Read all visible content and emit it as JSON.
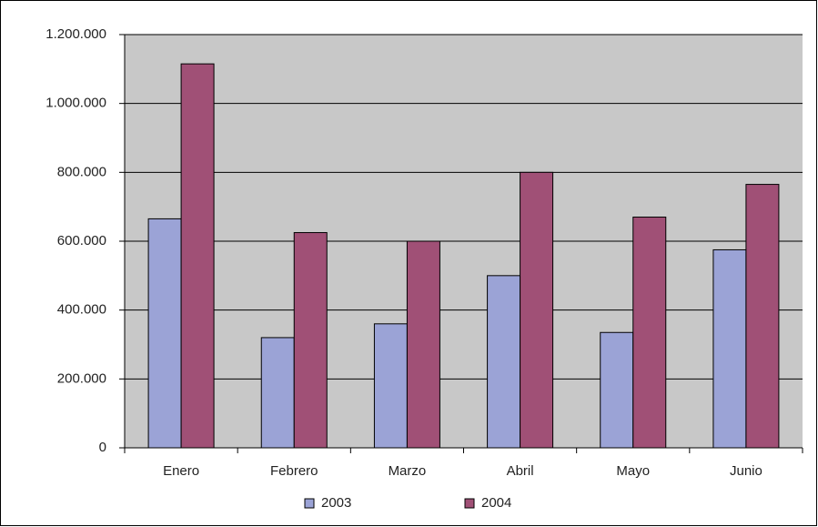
{
  "chart_data": {
    "type": "bar",
    "categories": [
      "Enero",
      "Febrero",
      "Marzo",
      "Abril",
      "Mayo",
      "Junio"
    ],
    "series": [
      {
        "name": "2003",
        "color": "#9ba3d6",
        "values": [
          665000,
          320000,
          360000,
          500000,
          335000,
          575000
        ]
      },
      {
        "name": "2004",
        "color": "#a05076",
        "values": [
          1115000,
          625000,
          600000,
          800000,
          670000,
          765000
        ]
      }
    ],
    "ylim": [
      0,
      1200000
    ],
    "yticks": [
      0,
      {
        "value": 200000,
        "label": "200.000"
      },
      {
        "value": 400000,
        "label": "400.000"
      },
      {
        "value": 600000,
        "label": "600.000"
      },
      {
        "value": 800000,
        "label": "800.000"
      },
      {
        "value": 1000000,
        "label": "1.000.000"
      },
      {
        "value": 1200000,
        "label": "1.200.000"
      }
    ],
    "grid": true,
    "legend": "bottom"
  }
}
